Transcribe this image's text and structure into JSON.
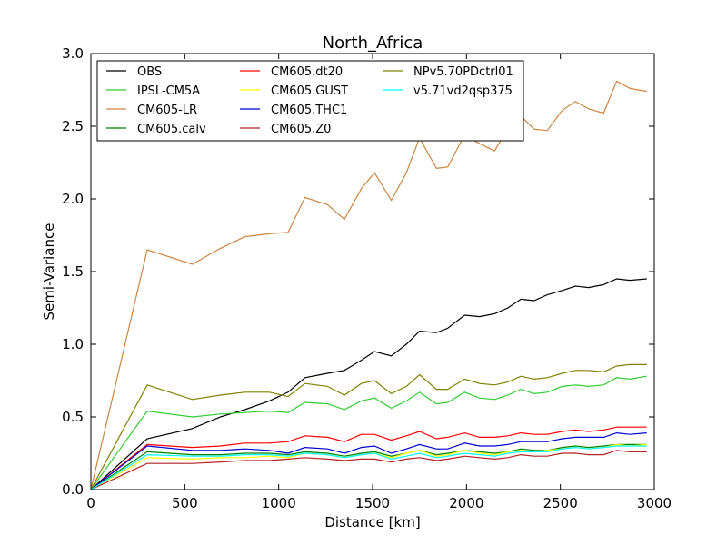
{
  "chart_data": {
    "type": "line",
    "title": "North_Africa",
    "xlabel": "Distance [km]",
    "ylabel": "Semi-Variance",
    "xlim": [
      0,
      3000
    ],
    "ylim": [
      0,
      3.0
    ],
    "xticks": [
      "0",
      "500",
      "1000",
      "1500",
      "2000",
      "2500",
      "3000"
    ],
    "yticks": [
      "0.0",
      "0.5",
      "1.0",
      "1.5",
      "2.0",
      "2.5",
      "3.0"
    ],
    "grid": false,
    "legend_placement": "top-left",
    "legend_columns": 3,
    "x": [
      0,
      300,
      540,
      690,
      820,
      950,
      1050,
      1140,
      1260,
      1350,
      1440,
      1510,
      1600,
      1680,
      1750,
      1840,
      1900,
      1990,
      2070,
      2150,
      2220,
      2290,
      2360,
      2430,
      2510,
      2580,
      2650,
      2730,
      2800,
      2870,
      2960
    ],
    "series": [
      {
        "name": "OBS",
        "color": "#000000",
        "values": [
          0,
          0.35,
          0.42,
          0.5,
          0.55,
          0.61,
          0.67,
          0.77,
          0.8,
          0.82,
          0.89,
          0.95,
          0.92,
          1.0,
          1.09,
          1.08,
          1.11,
          1.2,
          1.19,
          1.21,
          1.25,
          1.31,
          1.3,
          1.34,
          1.37,
          1.4,
          1.39,
          1.41,
          1.45,
          1.44,
          1.45
        ]
      },
      {
        "name": "IPSL-CM5A",
        "color": "#32cd32",
        "values": [
          0,
          0.54,
          0.5,
          0.52,
          0.53,
          0.54,
          0.53,
          0.6,
          0.59,
          0.55,
          0.61,
          0.63,
          0.56,
          0.61,
          0.67,
          0.59,
          0.6,
          0.67,
          0.63,
          0.62,
          0.65,
          0.69,
          0.66,
          0.67,
          0.71,
          0.72,
          0.71,
          0.72,
          0.77,
          0.76,
          0.78
        ]
      },
      {
        "name": "CM605-LR",
        "color": "#cd853f",
        "values": [
          0,
          1.65,
          1.55,
          1.66,
          1.74,
          1.76,
          1.77,
          2.01,
          1.96,
          1.86,
          2.07,
          2.18,
          1.99,
          2.18,
          2.42,
          2.21,
          2.22,
          2.44,
          2.38,
          2.33,
          2.49,
          2.57,
          2.48,
          2.47,
          2.61,
          2.67,
          2.62,
          2.59,
          2.81,
          2.76,
          2.74
        ]
      },
      {
        "name": "CM605.calv",
        "color": "#008000",
        "values": [
          0,
          0.26,
          0.24,
          0.24,
          0.25,
          0.25,
          0.24,
          0.26,
          0.25,
          0.23,
          0.25,
          0.26,
          0.23,
          0.25,
          0.27,
          0.24,
          0.25,
          0.27,
          0.26,
          0.25,
          0.26,
          0.28,
          0.27,
          0.27,
          0.29,
          0.3,
          0.29,
          0.3,
          0.31,
          0.31,
          0.31
        ]
      },
      {
        "name": "CM605.dt20",
        "color": "#ff0000",
        "values": [
          0,
          0.31,
          0.29,
          0.3,
          0.32,
          0.32,
          0.33,
          0.37,
          0.36,
          0.33,
          0.38,
          0.38,
          0.34,
          0.37,
          0.4,
          0.35,
          0.36,
          0.39,
          0.36,
          0.36,
          0.37,
          0.39,
          0.38,
          0.38,
          0.4,
          0.41,
          0.4,
          0.41,
          0.43,
          0.43,
          0.43
        ]
      },
      {
        "name": "CM605.GUST",
        "color": "#ffff00",
        "values": [
          0,
          0.22,
          0.21,
          0.22,
          0.22,
          0.23,
          0.22,
          0.25,
          0.24,
          0.22,
          0.24,
          0.25,
          0.22,
          0.25,
          0.27,
          0.23,
          0.24,
          0.27,
          0.25,
          0.24,
          0.26,
          0.27,
          0.26,
          0.27,
          0.28,
          0.29,
          0.28,
          0.29,
          0.31,
          0.3,
          0.31
        ]
      },
      {
        "name": "CM605.THC1",
        "color": "#0000cd",
        "values": [
          0,
          0.3,
          0.27,
          0.27,
          0.28,
          0.27,
          0.25,
          0.29,
          0.28,
          0.25,
          0.29,
          0.3,
          0.25,
          0.28,
          0.31,
          0.28,
          0.28,
          0.32,
          0.3,
          0.3,
          0.31,
          0.33,
          0.33,
          0.33,
          0.35,
          0.36,
          0.36,
          0.36,
          0.39,
          0.38,
          0.39
        ]
      },
      {
        "name": "CM605.Z0",
        "color": "#b22222",
        "values": [
          0,
          0.18,
          0.18,
          0.19,
          0.2,
          0.2,
          0.21,
          0.22,
          0.21,
          0.2,
          0.21,
          0.21,
          0.19,
          0.21,
          0.22,
          0.2,
          0.21,
          0.23,
          0.22,
          0.21,
          0.22,
          0.24,
          0.23,
          0.23,
          0.25,
          0.25,
          0.24,
          0.24,
          0.27,
          0.26,
          0.26
        ]
      },
      {
        "name": "NPv5.70PDctrl01",
        "color": "#808000",
        "values": [
          0,
          0.72,
          0.62,
          0.65,
          0.67,
          0.67,
          0.64,
          0.73,
          0.71,
          0.65,
          0.73,
          0.75,
          0.66,
          0.71,
          0.79,
          0.69,
          0.69,
          0.76,
          0.73,
          0.72,
          0.74,
          0.78,
          0.76,
          0.77,
          0.8,
          0.82,
          0.82,
          0.81,
          0.85,
          0.86,
          0.86
        ]
      },
      {
        "name": "v5.71vd2qsp375",
        "color": "#00ffff",
        "values": [
          0,
          0.24,
          0.23,
          0.23,
          0.24,
          0.24,
          0.23,
          0.25,
          0.24,
          0.22,
          0.24,
          0.25,
          0.21,
          0.23,
          0.25,
          0.22,
          0.23,
          0.25,
          0.24,
          0.23,
          0.25,
          0.26,
          0.26,
          0.26,
          0.28,
          0.29,
          0.28,
          0.29,
          0.3,
          0.3,
          0.3
        ]
      }
    ]
  }
}
